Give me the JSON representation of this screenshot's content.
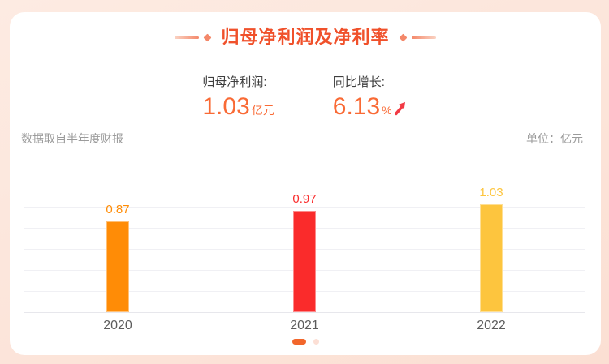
{
  "header": {
    "title": "归母净利润及净利率"
  },
  "stats": [
    {
      "label": "归母净利润:",
      "value": "1.03",
      "unit": "亿元"
    },
    {
      "label": "同比增长:",
      "value": "6.13",
      "unit": "%",
      "trend": "up"
    }
  ],
  "meta": {
    "source_note": "数据取自半年度财报",
    "unit_note": "单位：亿元"
  },
  "chart_data": {
    "type": "bar",
    "title": "归母净利润及净利率",
    "categories": [
      "2020",
      "2021",
      "2022"
    ],
    "values": [
      0.87,
      0.97,
      1.03
    ],
    "value_label_format": "0.00",
    "bar_colors": [
      "#ff8c06",
      "#fa2b2b",
      "#fdc53e"
    ],
    "xlabel": "",
    "ylabel": "亿元",
    "ylim": [
      0,
      1.18
    ],
    "grid": true,
    "yticks_labeled": false,
    "value_labels": true,
    "legend": false
  },
  "pagination": {
    "dots": [
      {
        "active": true
      },
      {
        "active": false
      }
    ]
  },
  "colors": {
    "title": "#f0512b",
    "stat_value": "#f96a35",
    "trend_arrow": "#f23a44",
    "background": "#fbe3d8",
    "active_dot": "#f2662b",
    "inactive_dot": "#fcdfd5"
  }
}
